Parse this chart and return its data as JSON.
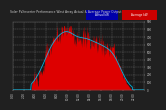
{
  "title": "Solar PV/Inverter Performance West Array Actual & Average Power Output",
  "fig_bg_color": "#202020",
  "plot_bg_color": "#1a1a1a",
  "bar_color": "#dd0000",
  "avg_line_color": "#00ccff",
  "grid_color": "#ffffff",
  "text_color": "#cccccc",
  "title_color": "#cccccc",
  "ylim": [
    0,
    900
  ],
  "num_bars": 288,
  "legend_actual": "Actual kW",
  "legend_average": "Average kW"
}
